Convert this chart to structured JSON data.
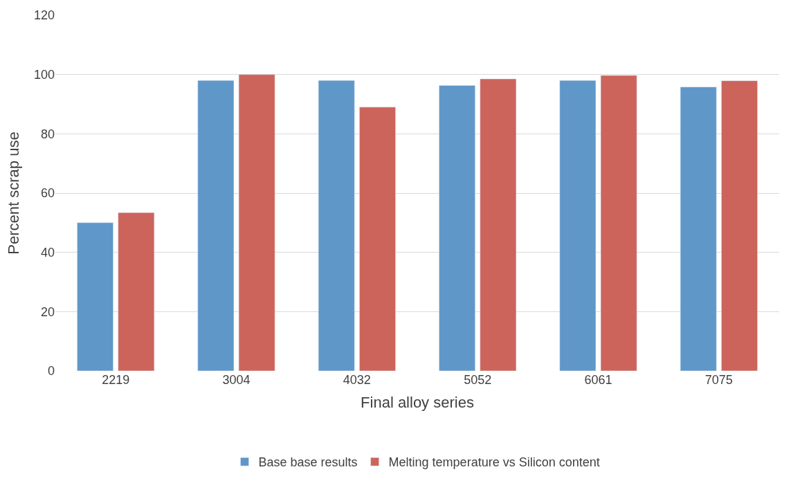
{
  "chart_data": {
    "type": "bar",
    "xlabel": "Final alloy series",
    "ylabel": "Percent scrap use",
    "categories": [
      "2219",
      "3004",
      "4032",
      "5052",
      "6061",
      "7075"
    ],
    "series": [
      {
        "name": "Base base results",
        "color": "#6097c9",
        "values": [
          50,
          98,
          98,
          96.3,
          98,
          95.8
        ]
      },
      {
        "name": "Melting temperature vs Silicon content",
        "color": "#cc645c",
        "values": [
          53.4,
          100,
          89,
          98.5,
          99.7,
          97.9
        ]
      }
    ],
    "ylim": [
      0,
      120
    ],
    "yticks": [
      0,
      20,
      40,
      60,
      80,
      100,
      120
    ],
    "grid": "y",
    "legend": "bottom"
  }
}
